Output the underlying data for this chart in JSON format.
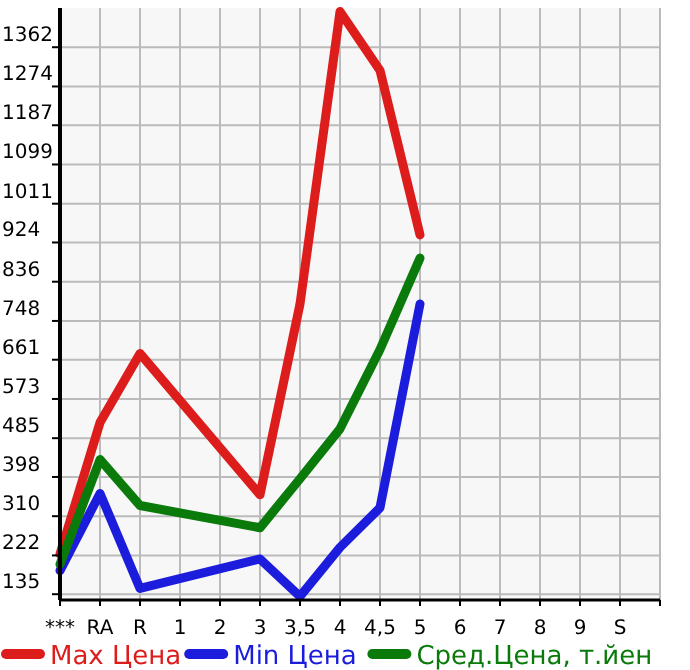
{
  "chart_data": {
    "type": "line",
    "categories": [
      "***",
      "RA",
      "R",
      "1",
      "2",
      "3",
      "3,5",
      "4",
      "4,5",
      "5",
      "6",
      "7",
      "8",
      "9",
      "S",
      null
    ],
    "series": [
      {
        "name": "Max Цена",
        "color": "#dd1c1c",
        "values": [
          225,
          520,
          675,
          null,
          null,
          358,
          786,
          1442,
          1310,
          941,
          null,
          null,
          null,
          null,
          null,
          null
        ]
      },
      {
        "name": "Min Цена",
        "color": "#1c1cdd",
        "values": [
          188,
          361,
          148,
          null,
          null,
          214,
          130,
          240,
          329,
          786,
          null,
          null,
          null,
          null,
          null,
          null
        ]
      },
      {
        "name": "Сред.Цена, т.йен",
        "color": "#0a7a0a",
        "values": [
          202,
          437,
          334,
          null,
          null,
          284,
          394,
          506,
          684,
          889,
          null,
          null,
          null,
          null,
          null,
          null
        ]
      }
    ],
    "ylim": [
      122,
      1450
    ],
    "yticks": [
      135,
      222,
      310,
      398,
      485,
      573,
      661,
      748,
      836,
      924,
      1011,
      1099,
      1187,
      1274,
      1362
    ],
    "grid": true,
    "legend": "bottom",
    "marker": "none",
    "line_style": "solid"
  }
}
